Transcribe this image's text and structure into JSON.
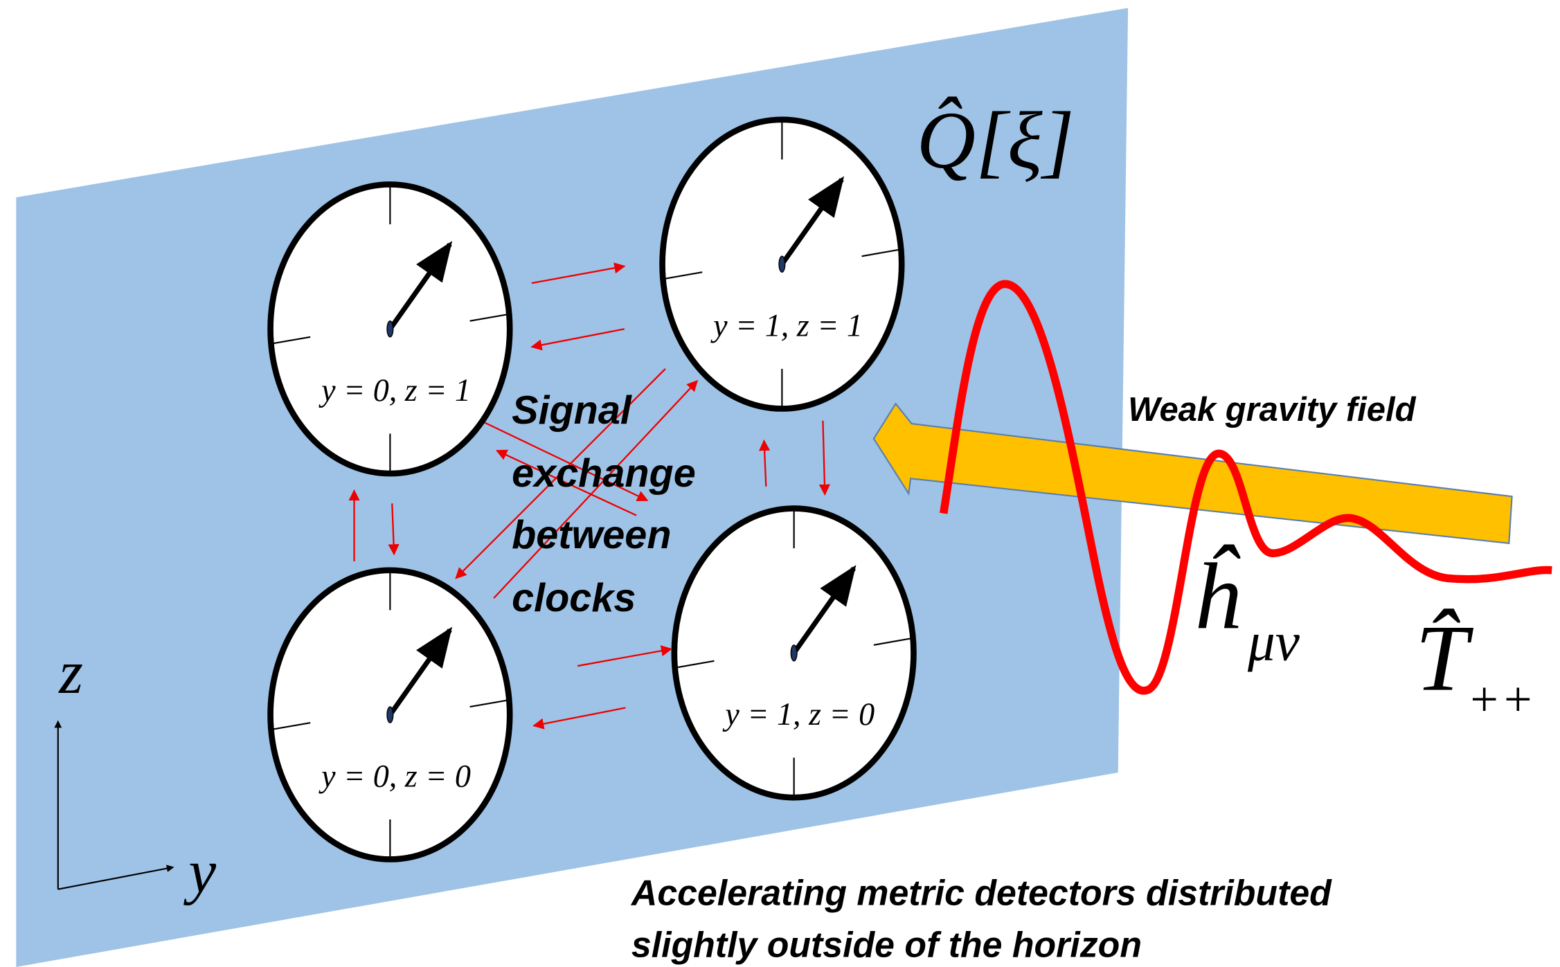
{
  "panel_label": "Q̂[ξ]",
  "clocks": [
    {
      "label": "y = 0, z = 1"
    },
    {
      "label": "y = 1, z = 1"
    },
    {
      "label": "y = 0, z = 0"
    },
    {
      "label": "y = 1, z = 0"
    }
  ],
  "signal_label": [
    "Signal",
    "exchange",
    "between",
    "clocks"
  ],
  "arrow_label": "Weak gravity field",
  "wave_label": {
    "symbol": "ĥ",
    "subscript": "μν"
  },
  "source_label": {
    "symbol": "T̂",
    "subscript": "++"
  },
  "axes": {
    "z": "z",
    "y": "y"
  },
  "caption": [
    "Accelerating metric detectors distributed",
    "slightly outside of the horizon"
  ]
}
